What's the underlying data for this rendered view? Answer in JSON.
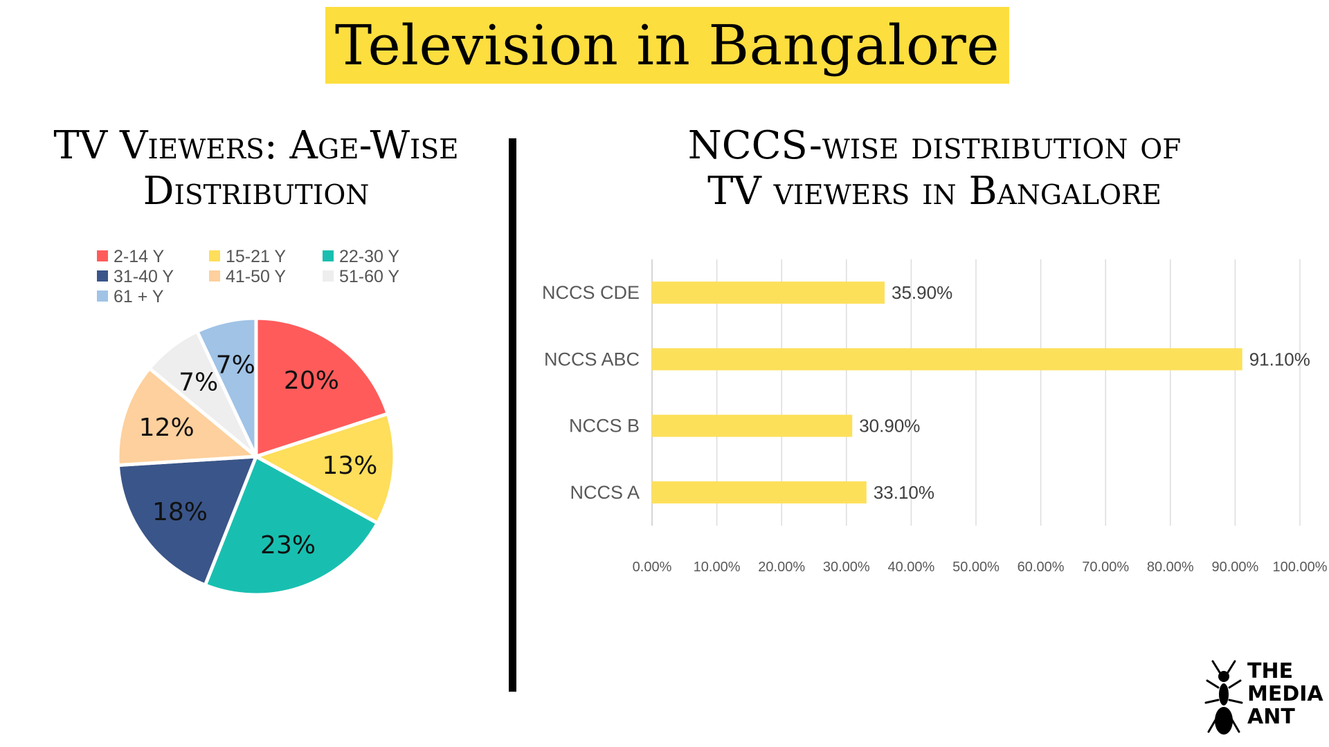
{
  "header": {
    "title": "Television in Bangalore"
  },
  "pie_chart_title_lines": [
    "TV Viewers: Age-Wise",
    "Distribution"
  ],
  "bar_chart_title_lines": [
    "NCCS-wise distribution of",
    "TV viewers in Bangalore"
  ],
  "logo": {
    "lines": [
      "THE",
      "MEDIA",
      "ANT"
    ],
    "icon": "ant-icon"
  },
  "chart_data": [
    {
      "type": "pie",
      "title": "TV Viewers: Age-Wise Distribution",
      "legend_position": "top",
      "slices": [
        {
          "label": "2-14 Y",
          "value": 20,
          "display": "20%",
          "color": "#ff5b5b"
        },
        {
          "label": "15-21 Y",
          "value": 13,
          "display": "13%",
          "color": "#fede5a"
        },
        {
          "label": "22-30 Y",
          "value": 23,
          "display": "23%",
          "color": "#18bfb0"
        },
        {
          "label": "31-40 Y",
          "value": 18,
          "display": "18%",
          "color": "#3a5589"
        },
        {
          "label": "41-50 Y",
          "value": 12,
          "display": "12%",
          "color": "#fdd09d"
        },
        {
          "label": "51-60 Y",
          "value": 7,
          "display": "7%",
          "color": "#eeeeee"
        },
        {
          "label": "61 + Y",
          "value": 7,
          "display": "7%",
          "color": "#a0c3e6"
        }
      ]
    },
    {
      "type": "bar",
      "orientation": "horizontal",
      "title": "NCCS-wise distribution of TV viewers in Bangalore",
      "categories": [
        "NCCS CDE",
        "NCCS ABC",
        "NCCS B",
        "NCCS A"
      ],
      "values": [
        35.9,
        91.1,
        30.9,
        33.1
      ],
      "data_labels": [
        "35.90%",
        "91.10%",
        "30.90%",
        "33.10%"
      ],
      "xlim": [
        0,
        100
      ],
      "x_ticks": [
        0,
        10,
        20,
        30,
        40,
        50,
        60,
        70,
        80,
        90,
        100
      ],
      "x_tick_labels": [
        "0.00%",
        "10.00%",
        "20.00%",
        "30.00%",
        "40.00%",
        "50.00%",
        "60.00%",
        "70.00%",
        "80.00%",
        "90.00%",
        "100.00%"
      ],
      "grid": "vertical",
      "bar_color": "#fde05a"
    }
  ]
}
